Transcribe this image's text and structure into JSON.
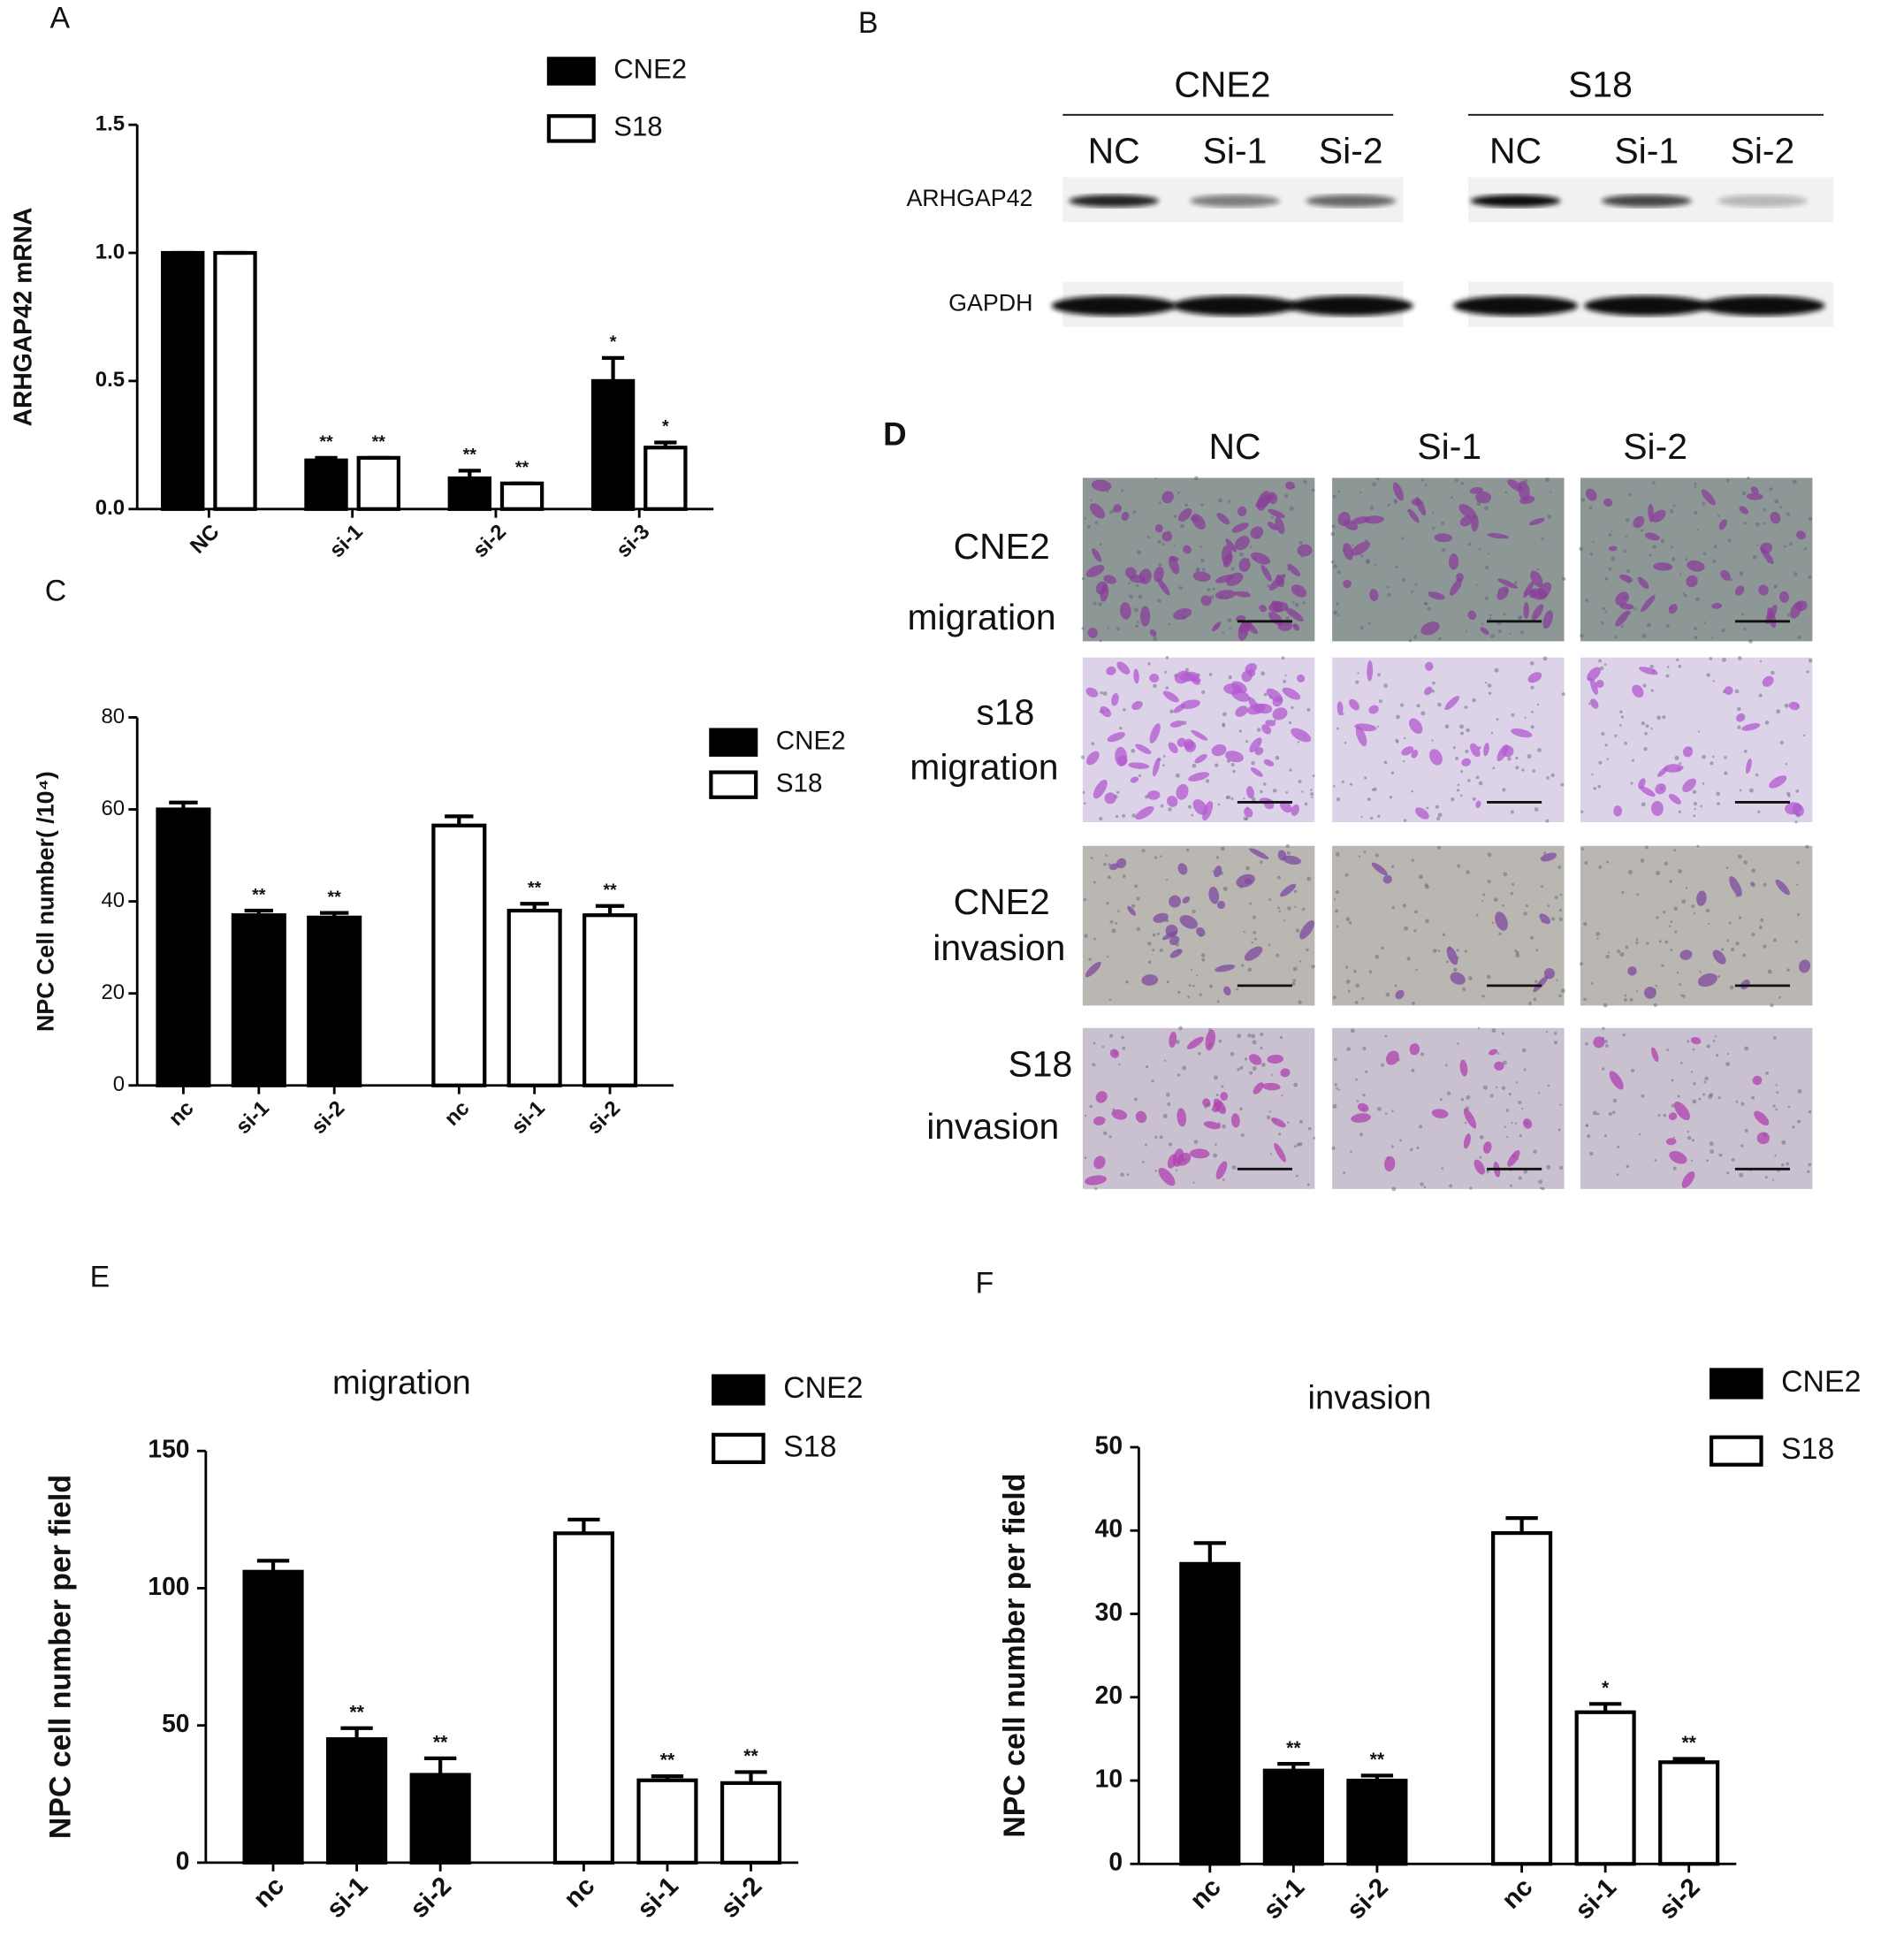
{
  "chart_data": [
    {
      "type": "bar",
      "panel": "A",
      "ylabel": "ARHGAP42 mRNA",
      "grouping": "category",
      "categories": [
        "NC",
        "si-1",
        "si-2",
        "si-3"
      ],
      "ylim": [
        0,
        1.5
      ],
      "yticks": [
        {
          "value": 0,
          "label": "0.0"
        },
        0.5,
        {
          "value": 1,
          "label": "1.0"
        },
        1.5
      ],
      "edgecolor": "#000000",
      "series": [
        {
          "name": "CNE2",
          "color": "#000000",
          "values": [
            1.0,
            0.19,
            0.12,
            0.5
          ],
          "errors": [
            0,
            0.01,
            0.03,
            0.09
          ],
          "significance": [
            null,
            "**",
            "**",
            "*"
          ]
        },
        {
          "name": "S18",
          "color": "#ffffff",
          "values": [
            1.0,
            0.2,
            0.1,
            0.24
          ],
          "errors": [
            0,
            0,
            0,
            0.02
          ],
          "significance": [
            null,
            "**",
            "**",
            "*"
          ]
        }
      ]
    },
    {
      "type": "bar",
      "panel": "C",
      "ylabel": "NPC Cell number( /10⁴)",
      "grouping": "series",
      "categories": [
        "nc",
        "si-1",
        "si-2"
      ],
      "ylim": [
        0,
        80
      ],
      "yticks": [
        0,
        20,
        40,
        60,
        80
      ],
      "edgecolor": "#000000",
      "series": [
        {
          "name": "CNE2",
          "color": "#000000",
          "values": [
            60,
            37,
            36.5
          ],
          "errors": [
            1.5,
            1,
            1
          ],
          "significance": [
            null,
            "**",
            "**"
          ]
        },
        {
          "name": "S18",
          "color": "#ffffff",
          "values": [
            56.5,
            38,
            37
          ],
          "errors": [
            2,
            1.5,
            2
          ],
          "significance": [
            null,
            "**",
            "**"
          ]
        }
      ]
    },
    {
      "type": "bar",
      "panel": "E",
      "title": "migration",
      "ylabel": "NPC cell number per field",
      "grouping": "series",
      "categories": [
        "nc",
        "si-1",
        "si-2"
      ],
      "ylim": [
        0,
        150
      ],
      "yticks": [
        0,
        50,
        100,
        150
      ],
      "edgecolor": "#000000",
      "series": [
        {
          "name": "CNE2",
          "color": "#000000",
          "values": [
            106,
            45,
            32
          ],
          "errors": [
            4,
            4,
            6
          ],
          "significance": [
            null,
            "**",
            "**"
          ]
        },
        {
          "name": "S18",
          "color": "#ffffff",
          "values": [
            120,
            30,
            29
          ],
          "errors": [
            5,
            1.5,
            4
          ],
          "significance": [
            null,
            "**",
            "**"
          ]
        }
      ]
    },
    {
      "type": "bar",
      "panel": "F",
      "title": "invasion",
      "ylabel": "NPC cell number per field",
      "grouping": "series",
      "categories": [
        "nc",
        "si-1",
        "si-2"
      ],
      "ylim": [
        0,
        50
      ],
      "yticks": [
        0,
        10,
        20,
        30,
        40,
        50
      ],
      "edgecolor": "#000000",
      "series": [
        {
          "name": "CNE2",
          "color": "#000000",
          "values": [
            36,
            11.2,
            10
          ],
          "errors": [
            2.5,
            0.8,
            0.6
          ],
          "significance": [
            null,
            "**",
            "**"
          ]
        },
        {
          "name": "S18",
          "color": "#ffffff",
          "values": [
            39.7,
            18.2,
            12.2
          ],
          "errors": [
            1.8,
            1,
            0.4
          ],
          "significance": [
            null,
            "*",
            "**"
          ]
        }
      ]
    }
  ],
  "blot": {
    "panel": "B",
    "rows": [
      "ARHGAP42",
      "GAPDH"
    ],
    "groups": [
      {
        "name": "CNE2",
        "lanes": [
          "NC",
          "Si-1",
          "Si-2"
        ]
      },
      {
        "name": "S18",
        "lanes": [
          "NC",
          "Si-1",
          "Si-2"
        ]
      }
    ]
  },
  "micrographs": {
    "panel": "D",
    "columns": [
      "NC",
      "Si-1",
      "Si-2"
    ],
    "rows": [
      {
        "cell_line": "CNE2",
        "assay": "migration"
      },
      {
        "cell_line": "s18",
        "assay": "migration"
      },
      {
        "cell_line": "CNE2",
        "assay": "invasion"
      },
      {
        "cell_line": "S18",
        "assay": "invasion"
      }
    ]
  }
}
